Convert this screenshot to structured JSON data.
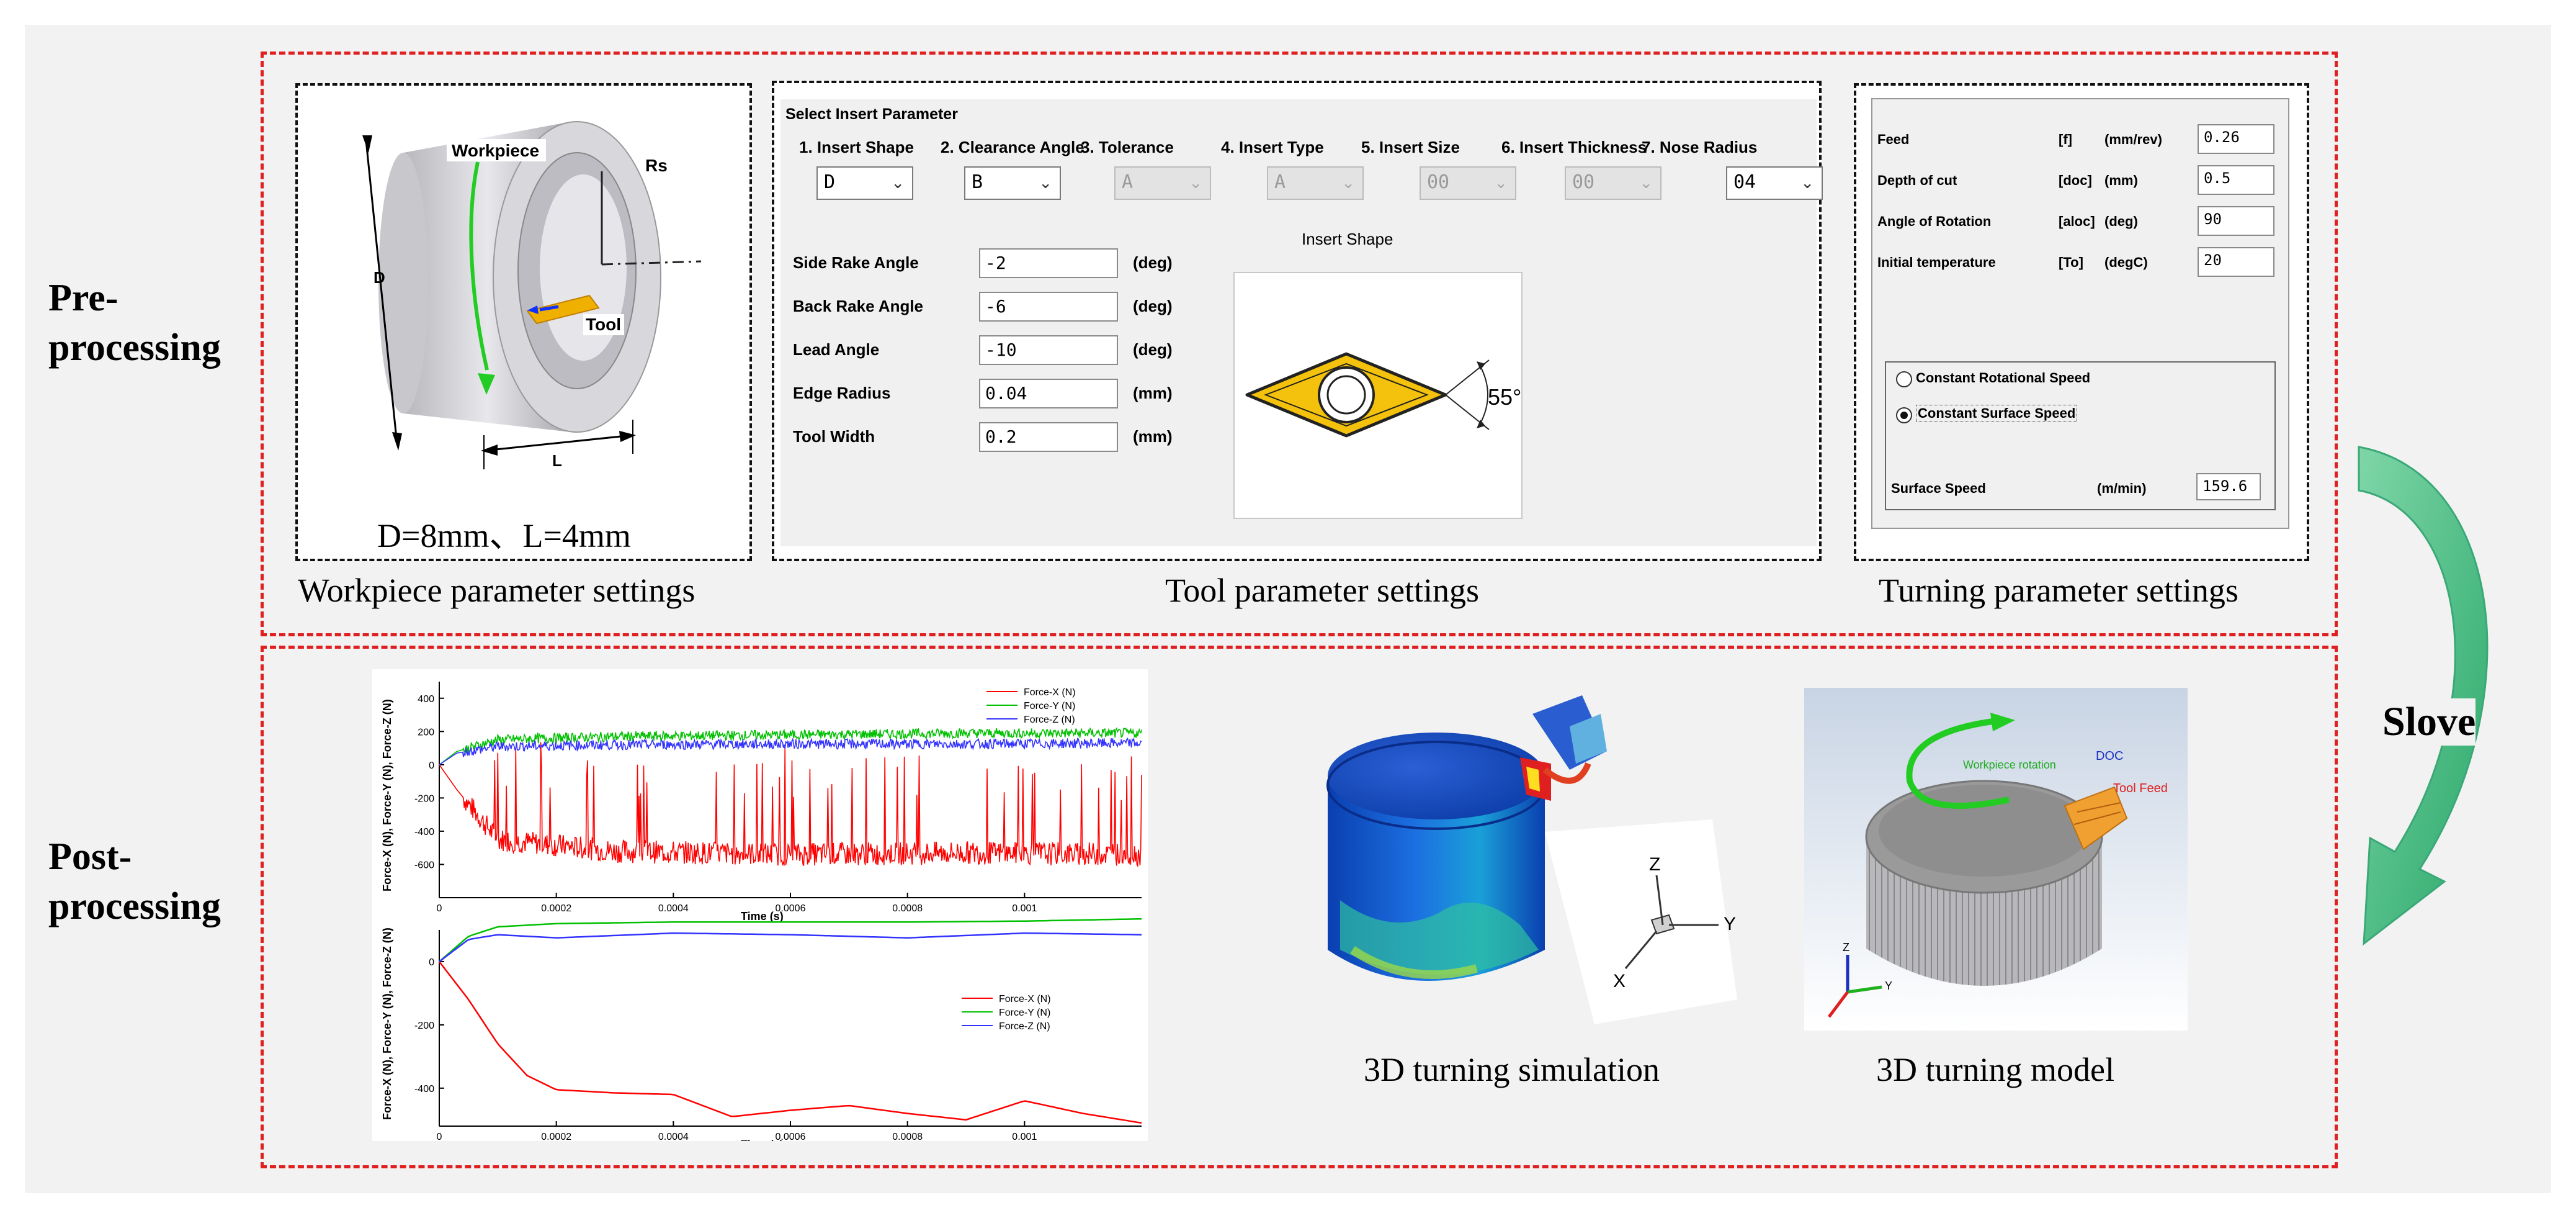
{
  "sections": {
    "pre_label": "Pre-\nprocessing",
    "pre_line1": "Pre-",
    "pre_line2": "processing",
    "post_line1": "Post-",
    "post_line2": "processing",
    "solve": "Slove"
  },
  "workpiece": {
    "caption": "Workpiece parameter settings",
    "dims": "D=8mm、L=4mm",
    "label_workpiece": "Workpiece",
    "label_tool": "Tool",
    "label_rs": "Rs",
    "label_d": "D",
    "label_l": "L"
  },
  "tool": {
    "caption": "Tool parameter settings",
    "title": "Select Insert Parameter",
    "columns": [
      {
        "label": "1. Insert Shape",
        "value": "D",
        "enabled": true
      },
      {
        "label": "2. Clearance Angle",
        "value": "B",
        "enabled": true
      },
      {
        "label": "3. Tolerance",
        "value": "A",
        "enabled": false
      },
      {
        "label": "4. Insert Type",
        "value": "A",
        "enabled": false
      },
      {
        "label": "5. Insert Size",
        "value": "00",
        "enabled": false
      },
      {
        "label": "6. Insert Thickness",
        "value": "00",
        "enabled": false
      },
      {
        "label": "7. Nose Radius",
        "value": "04",
        "enabled": true
      }
    ],
    "angles": [
      {
        "label": "Side Rake Angle",
        "value": "-2",
        "unit": "(deg)"
      },
      {
        "label": "Back Rake Angle",
        "value": "-6",
        "unit": "(deg)"
      },
      {
        "label": "Lead Angle",
        "value": "-10",
        "unit": "(deg)"
      },
      {
        "label": "Edge Radius",
        "value": "0.04",
        "unit": "(mm)"
      },
      {
        "label": "Tool Width",
        "value": "0.2",
        "unit": "(mm)"
      }
    ],
    "insert_shape_title": "Insert Shape",
    "insert_angle": "55°"
  },
  "turning": {
    "caption": "Turning parameter settings",
    "rows": [
      {
        "label": "Feed",
        "sym": "[f]",
        "unit": "(mm/rev)",
        "value": "0.26"
      },
      {
        "label": "Depth of cut",
        "sym": "[doc]",
        "unit": "(mm)",
        "value": "0.5"
      },
      {
        "label": "Angle of Rotation",
        "sym": "[aloc]",
        "unit": "(deg)",
        "value": "90"
      },
      {
        "label": "Initial temperature",
        "sym": "[To]",
        "unit": "(degC)",
        "value": "20"
      }
    ],
    "radio1": "Constant  Rotational Speed",
    "radio2": "Constant  Surface Speed",
    "surface_label": "Surface Speed",
    "surface_unit": "(m/min)",
    "surface_value": "159.6"
  },
  "post": {
    "sim_caption": "3D turning simulation",
    "model_caption": "3D turning model",
    "model_label_doc": "DOC",
    "model_label_feed": "Tool Feed",
    "model_label_rot": "Workpiece rotation",
    "axis_x": "X",
    "axis_y": "Y",
    "axis_z": "Z"
  },
  "chart_data": [
    {
      "type": "line",
      "title": "",
      "xlabel": "Time (s)",
      "ylabel": "Force-X (N), Force-Y (N), Force-Z (N)",
      "xlim": [
        0,
        0.0012
      ],
      "ylim": [
        -800,
        500
      ],
      "xticks": [
        "0",
        "0.0002",
        "0.0004",
        "0.0006",
        "0.0008",
        "0.001"
      ],
      "yticks": [
        "400",
        "200",
        "0",
        "-200",
        "-400",
        "-600"
      ],
      "legend_position": "top-right",
      "series": [
        {
          "name": "Force-X (N)",
          "color": "#ff0000",
          "x": [
            0,
            3e-05,
            0.0001,
            0.0003,
            0.0006,
            0.0009,
            0.0012
          ],
          "values": [
            0,
            -150,
            -450,
            -520,
            -540,
            -530,
            -540
          ]
        },
        {
          "name": "Force-Y (N)",
          "color": "#00c000",
          "x": [
            0,
            3e-05,
            0.0001,
            0.0003,
            0.0006,
            0.0009,
            0.0012
          ],
          "values": [
            0,
            80,
            150,
            170,
            180,
            190,
            190
          ]
        },
        {
          "name": "Force-Z (N)",
          "color": "#3333ff",
          "x": [
            0,
            3e-05,
            0.0001,
            0.0003,
            0.0006,
            0.0009,
            0.0012
          ],
          "values": [
            0,
            70,
            110,
            120,
            125,
            125,
            130
          ]
        }
      ]
    },
    {
      "type": "line",
      "title": "",
      "xlabel": "Time (s)",
      "ylabel": "Force-X (N), Force-Y (N), Force-Z (N)",
      "xlim": [
        0,
        0.0012
      ],
      "ylim": [
        -520,
        100
      ],
      "xticks": [
        "0",
        "0.0002",
        "0.0004",
        "0.0006",
        "0.0008",
        "0.001"
      ],
      "yticks": [
        "0",
        "-200",
        "-400"
      ],
      "legend_position": "center-right",
      "series": [
        {
          "name": "Force-X (N)",
          "color": "#ff0000",
          "x": [
            0,
            5e-05,
            0.0001,
            0.00015,
            0.0002,
            0.0003,
            0.0004,
            0.0005,
            0.0006,
            0.0007,
            0.0008,
            0.0009,
            0.001,
            0.0011,
            0.0012
          ],
          "values": [
            0,
            -120,
            -260,
            -360,
            -405,
            -415,
            -420,
            -490,
            -470,
            -455,
            -480,
            -500,
            -440,
            -480,
            -510
          ]
        },
        {
          "name": "Force-Y (N)",
          "color": "#00c000",
          "x": [
            0,
            5e-05,
            0.0001,
            0.0002,
            0.0004,
            0.0006,
            0.0008,
            0.001,
            0.0012
          ],
          "values": [
            0,
            80,
            110,
            120,
            125,
            125,
            125,
            128,
            135
          ]
        },
        {
          "name": "Force-Z (N)",
          "color": "#3333ff",
          "x": [
            0,
            5e-05,
            0.0001,
            0.0002,
            0.0004,
            0.0006,
            0.0008,
            0.001,
            0.0012
          ],
          "values": [
            0,
            70,
            85,
            75,
            90,
            85,
            75,
            90,
            85
          ]
        }
      ]
    }
  ]
}
